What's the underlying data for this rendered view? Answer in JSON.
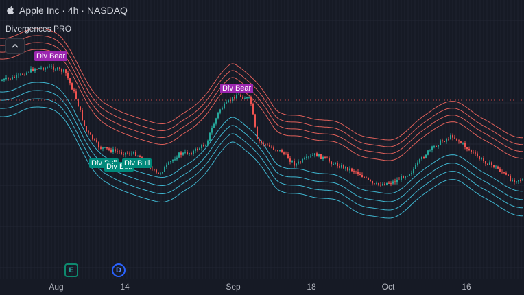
{
  "header": {
    "symbol_line": "Apple Inc · 4h · NASDAQ",
    "indicator_name": "Divergences PRO",
    "collapse_icon": "chevron-up-icon"
  },
  "x_axis": {
    "labels": [
      "Aug",
      "14",
      "Sep",
      "18",
      "Oct",
      "16"
    ]
  },
  "tags": {
    "bear_1": "Div Bear",
    "bear_2": "Div Bear",
    "bull_1": "Div Bull",
    "bull_2": "Div Bull",
    "bull_3": "Div Bull"
  },
  "events": {
    "earnings": "E",
    "dividend": "D"
  },
  "colors": {
    "background": "#161a25",
    "up": "#26a69a",
    "down": "#ef5350",
    "upper_bands": "#e0605a",
    "lower_bands": "#3fb6d0",
    "bear_tag": "#9c27b0",
    "bull_tag": "#00897b",
    "price_line": "#ef5350"
  }
}
